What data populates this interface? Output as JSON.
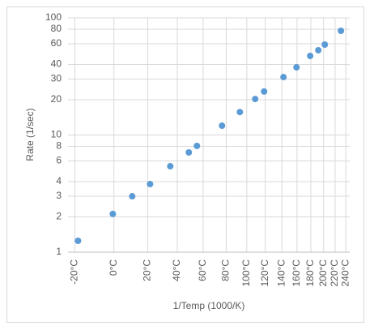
{
  "chart_data": {
    "type": "scatter",
    "x_label": "1/Temp (1000/K)",
    "y_label": "Rate (1/sec)",
    "log_y": true,
    "grid": true,
    "series": [
      {
        "color": "#5b9bd5",
        "x": [
          3.926,
          3.669,
          3.526,
          3.394,
          3.245,
          3.108,
          3.048,
          2.863,
          2.731,
          2.618,
          2.552,
          2.409,
          2.313,
          2.212,
          2.152,
          2.104,
          1.985
        ],
        "values": [
          1.25,
          2.12,
          3.0,
          3.81,
          5.41,
          7.1,
          8.07,
          12.0,
          15.7,
          20.3,
          23.5,
          31.2,
          37.8,
          47.3,
          52.9,
          59.1,
          77.5
        ]
      }
    ],
    "xlim": [
      4.0,
      1.92
    ],
    "xticks": [
      {
        "value": 3.95,
        "label": "-20°C"
      },
      {
        "value": 3.661,
        "label": "0°C"
      },
      {
        "value": 3.411,
        "label": "20°C"
      },
      {
        "value": 3.193,
        "label": "40°C"
      },
      {
        "value": 3.002,
        "label": "60°C"
      },
      {
        "value": 2.832,
        "label": "80°C"
      },
      {
        "value": 2.68,
        "label": "100°C"
      },
      {
        "value": 2.544,
        "label": "120°C"
      },
      {
        "value": 2.421,
        "label": "140°C"
      },
      {
        "value": 2.309,
        "label": "160°C"
      },
      {
        "value": 2.207,
        "label": "180°C"
      },
      {
        "value": 2.113,
        "label": "200°C"
      },
      {
        "value": 2.028,
        "label": "220°C"
      },
      {
        "value": 1.949,
        "label": "240°C"
      }
    ],
    "ylim": [
      1,
      100
    ],
    "yticks": [
      1,
      2,
      3,
      4,
      6,
      8,
      10,
      20,
      30,
      40,
      60,
      80,
      100
    ]
  }
}
